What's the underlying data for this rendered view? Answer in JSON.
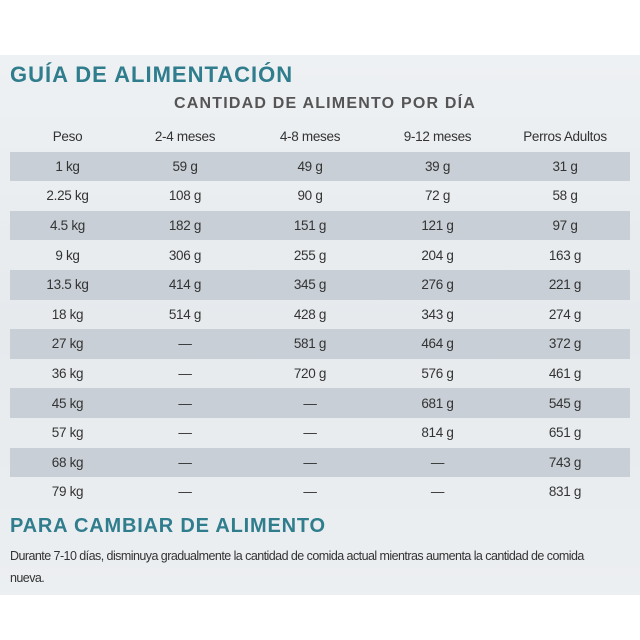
{
  "header": {
    "title": "GUÍA DE ALIMENTACIÓN",
    "subtitle": "CANTIDAD DE ALIMENTO POR DÍA"
  },
  "table": {
    "columns": [
      "Peso",
      "2-4 meses",
      "4-8 meses",
      "9-12 meses",
      "Perros Adultos"
    ],
    "rows": [
      [
        "1 kg",
        "59 g",
        "49 g",
        "39 g",
        "31 g"
      ],
      [
        "2.25 kg",
        "108 g",
        "90 g",
        "72 g",
        "58 g"
      ],
      [
        "4.5 kg",
        "182 g",
        "151 g",
        "121 g",
        "97 g"
      ],
      [
        "9 kg",
        "306 g",
        "255 g",
        "204 g",
        "163 g"
      ],
      [
        "13.5 kg",
        "414 g",
        "345 g",
        "276 g",
        "221 g"
      ],
      [
        "18 kg",
        "514 g",
        "428 g",
        "343 g",
        "274 g"
      ],
      [
        "27 kg",
        "—",
        "581 g",
        "464 g",
        "372 g"
      ],
      [
        "36 kg",
        "—",
        "720 g",
        "576 g",
        "461 g"
      ],
      [
        "45 kg",
        "—",
        "—",
        "681 g",
        "545 g"
      ],
      [
        "57 kg",
        "—",
        "—",
        "814 g",
        "651 g"
      ],
      [
        "68 kg",
        "—",
        "—",
        "—",
        "743 g"
      ],
      [
        "79 kg",
        "—",
        "—",
        "—",
        "831 g"
      ]
    ]
  },
  "section": {
    "title": "PARA CAMBIAR DE ALIMENTO",
    "text": "Durante 7-10 días, disminuya gradualmente la cantidad de comida actual mientras aumenta la cantidad de comida nueva."
  }
}
